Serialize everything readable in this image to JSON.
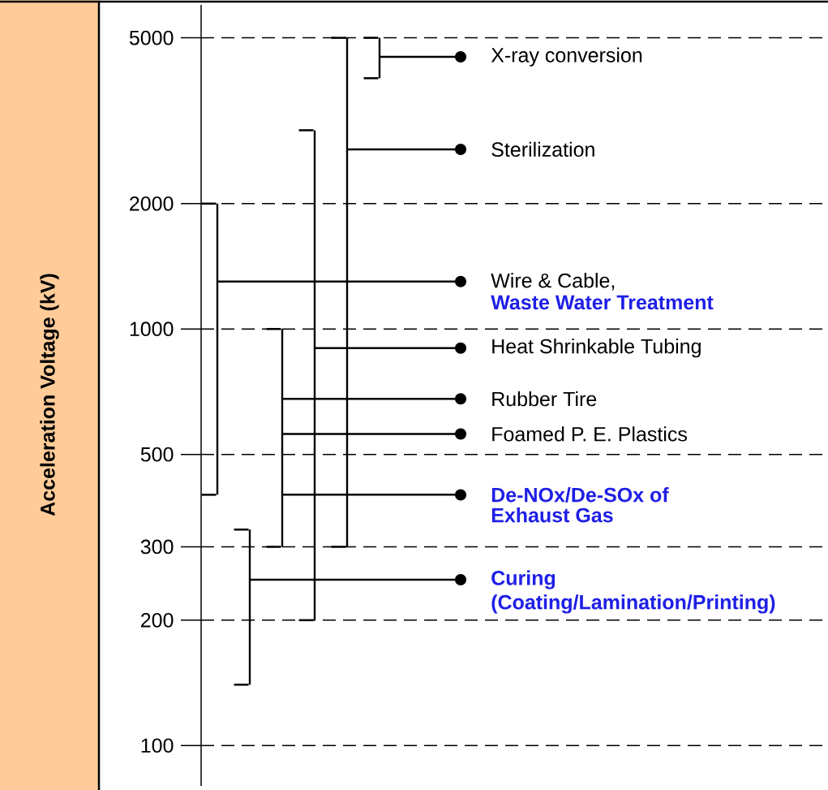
{
  "chart_data": {
    "type": "bar",
    "ylabel": "Acceleration Voltage (kV)",
    "color": "#000000",
    "categories": [
      null,
      null,
      null,
      null,
      null,
      null
    ],
    "base": [
      400,
      140,
      300,
      200,
      300,
      4000
    ],
    "values": [
      1600,
      190,
      700,
      2800,
      4700,
      1000
    ],
    "log": "y",
    "grid": "y",
    "ylim": [
      80,
      6000
    ],
    "yticks": [
      100,
      200,
      300,
      500,
      1000,
      2000,
      5000
    ],
    "ref_lines": [
      {
        "axis": "y",
        "value": 1300,
        "label": "Wire & Cable,"
      },
      {
        "axis": "y",
        "value": 250,
        "label": "**Curing**"
      },
      {
        "axis": "y",
        "value": 400,
        "label": "**De-NOx/De-SOx of**"
      },
      {
        "axis": "y",
        "value": 900,
        "label": "Heat Shrinkable Tubing"
      },
      {
        "axis": "y",
        "value": 2700,
        "label": "Sterilization"
      },
      {
        "axis": "y",
        "value": 4500,
        "label": "X-ray conversion"
      },
      {
        "axis": "y",
        "value": 680,
        "label": "Rubber Tire"
      },
      {
        "axis": "y",
        "value": 560,
        "label": "Foamed P. E. Plastics"
      }
    ],
    "annotations": [
      "**Waste Water Treatment**",
      "**(Coating/Lamination/Printing)**",
      "**Exhaust Gas**"
    ]
  }
}
